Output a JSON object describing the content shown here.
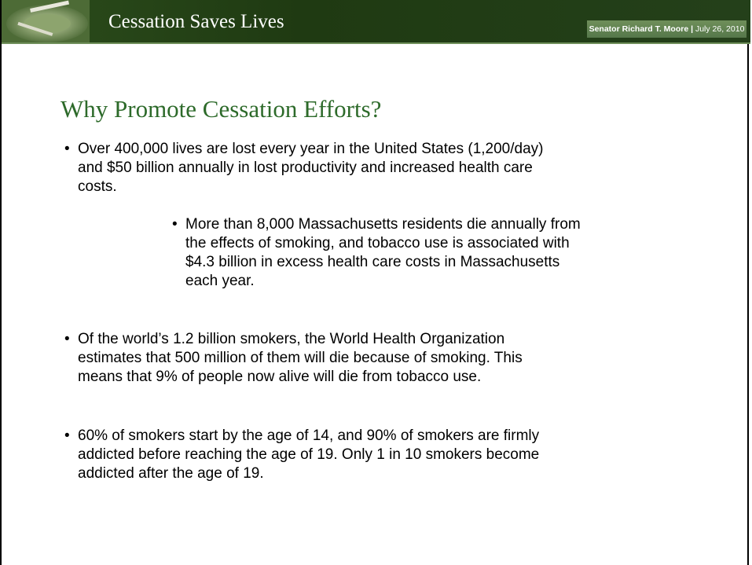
{
  "header": {
    "title": "Cessation Saves Lives",
    "presenter": "Senator Richard T. Moore |",
    "date": "July 26, 2010"
  },
  "heading": "Why Promote Cessation Efforts?",
  "bullets": [
    {
      "lines": [
        "Over 400,000 lives are lost every year in the United States (1,200/day)",
        "and $50 billion annually in lost productivity and increased health care",
        "costs."
      ]
    },
    {
      "lines": [
        "More than 8,000 Massachusetts residents die annually from",
        "the effects of smoking, and tobacco use is associated with",
        "$4.3 billion in excess health care costs in Massachusetts",
        "each year."
      ]
    },
    {
      "lines": [
        "Of the world’s 1.2 billion smokers, the World Health Organization",
        "estimates that 500 million of them will die because of smoking.  This",
        "means that 9% of people now alive will die from tobacco use."
      ]
    },
    {
      "lines": [
        "60% of smokers start by the age of 14, and 90% of smokers are firmly",
        "addicted before reaching the age of 19.  Only 1 in 10 smokers become",
        "addicted after the age of 19."
      ]
    }
  ]
}
